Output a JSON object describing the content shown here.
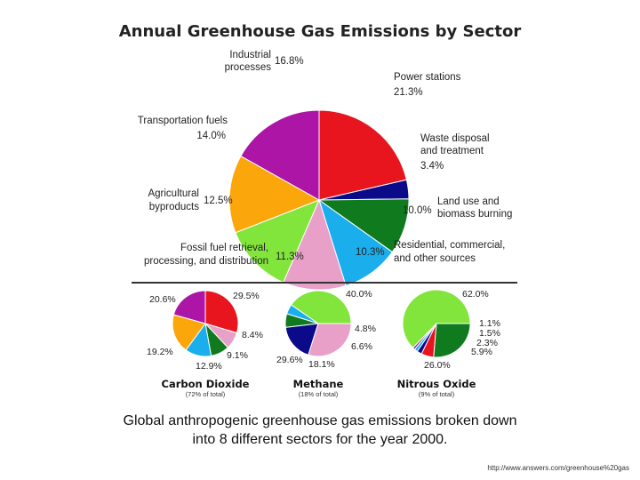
{
  "caption_lines": [
    "Global anthropogenic greenhouse gas emissions broken down",
    "into 8 different sectors for the year 2000."
  ],
  "source_url": "http://www.answers.com/greenhouse%20gas",
  "chart_data": [
    {
      "type": "pie",
      "title": "Annual Greenhouse Gas Emissions by Sector",
      "unit": "%",
      "slices": [
        {
          "label": "Power stations",
          "value": 21.3,
          "color": "#e8141e"
        },
        {
          "label": "Waste disposal and treatment",
          "value": 3.4,
          "color": "#0b0b8a"
        },
        {
          "label": "Land use and biomass burning",
          "value": 10.0,
          "color": "#0f7a1e"
        },
        {
          "label": "Residential, commercial, and other sources",
          "value": 10.3,
          "color": "#1aaeed"
        },
        {
          "label": "Fossil fuel retrieval, processing, and distribution",
          "value": 11.3,
          "color": "#e8a0c8"
        },
        {
          "label": "Agricultural byproducts",
          "value": 12.5,
          "color": "#82e53c"
        },
        {
          "label": "Transportation fuels",
          "value": 14.0,
          "color": "#fba70c"
        },
        {
          "label": "Industrial processes",
          "value": 16.8,
          "color": "#ac15a6"
        }
      ],
      "text_labels": [
        {
          "lines": [
            "Industrial",
            "processes"
          ],
          "value": "16.8%"
        },
        {
          "lines": [
            "Power stations"
          ],
          "value": "21.3%"
        },
        {
          "lines": [
            "Waste disposal",
            "and treatment"
          ],
          "value": "3.4%"
        },
        {
          "lines": [
            "Land use and",
            "biomass burning"
          ],
          "value": "10.0%"
        },
        {
          "lines": [
            "Residential, commercial,",
            "and other sources"
          ],
          "value": "10.3%"
        },
        {
          "lines": [
            "Fossil fuel retrieval,",
            "processing, and distribution"
          ],
          "value": "11.3%"
        },
        {
          "lines": [
            "Agricultural",
            "byproducts"
          ],
          "value": "12.5%"
        },
        {
          "lines": [
            "Transportation fuels"
          ],
          "value": "14.0%"
        }
      ]
    },
    {
      "type": "pie",
      "title": "Carbon Dioxide",
      "subtitle": "(72% of total)",
      "unit": "%",
      "slices": [
        {
          "label": "Power stations",
          "value": 29.5,
          "color": "#e8141e"
        },
        {
          "label": "Fossil fuel retrieval, processing, and distribution",
          "value": 8.4,
          "color": "#e8a0c8"
        },
        {
          "label": "Land use and biomass burning",
          "value": 9.1,
          "color": "#0f7a1e"
        },
        {
          "label": "Residential, commercial, and other sources",
          "value": 12.9,
          "color": "#1aaeed"
        },
        {
          "label": "Transportation fuels",
          "value": 19.2,
          "color": "#fba70c"
        },
        {
          "label": "Industrial processes",
          "value": 20.6,
          "color": "#ac15a6"
        }
      ],
      "value_labels": [
        "29.5%",
        "8.4%",
        "9.1%",
        "12.9%",
        "19.2%",
        "20.6%"
      ]
    },
    {
      "type": "pie",
      "title": "Methane",
      "subtitle": "(18% of total)",
      "unit": "%",
      "slices": [
        {
          "label": "Agricultural byproducts",
          "value": 40.0,
          "color": "#82e53c"
        },
        {
          "label": "Residential, commercial, and other sources",
          "value": 4.8,
          "color": "#1aaeed"
        },
        {
          "label": "Land use and biomass burning",
          "value": 6.6,
          "color": "#0f7a1e"
        },
        {
          "label": "Waste disposal and treatment",
          "value": 18.1,
          "color": "#0b0b8a"
        },
        {
          "label": "Fossil fuel retrieval, processing, and distribution",
          "value": 29.6,
          "color": "#e8a0c8"
        }
      ],
      "value_labels": [
        "40.0%",
        "4.8%",
        "6.6%",
        "18.1%",
        "29.6%"
      ]
    },
    {
      "type": "pie",
      "title": "Nitrous Oxide",
      "subtitle": "(9% of total)",
      "unit": "%",
      "slices": [
        {
          "label": "Agricultural byproducts",
          "value": 62.0,
          "color": "#82e53c"
        },
        {
          "label": "Industrial processes",
          "value": 1.1,
          "color": "#ac15a6"
        },
        {
          "label": "Residential, commercial, and other sources",
          "value": 1.5,
          "color": "#1aaeed"
        },
        {
          "label": "Waste disposal and treatment",
          "value": 2.3,
          "color": "#0b0b8a"
        },
        {
          "label": "Power stations",
          "value": 5.9,
          "color": "#e8141e"
        },
        {
          "label": "Land use and biomass burning",
          "value": 26.0,
          "color": "#0f7a1e"
        }
      ],
      "value_labels": [
        "62.0%",
        "1.1%",
        "1.5%",
        "2.3%",
        "5.9%",
        "26.0%"
      ]
    }
  ]
}
